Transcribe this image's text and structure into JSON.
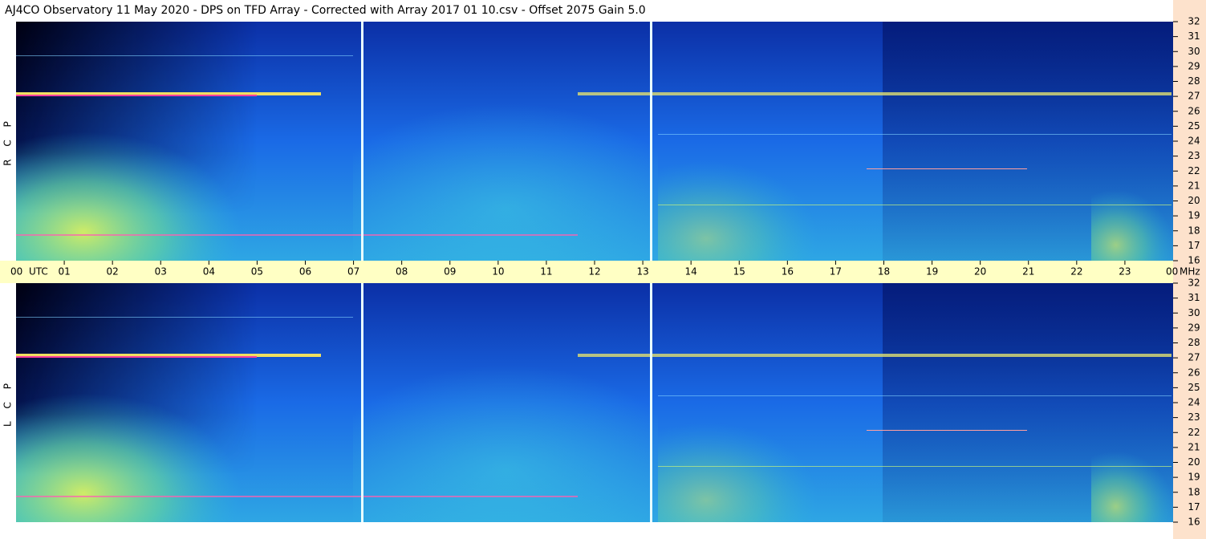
{
  "title": "AJ4CO Observatory  11 May 2020  -  DPS on TFD Array  -  Corrected with Array 2017 01 10.csv  -  Offset 2075  Gain 5.0",
  "time_axis": {
    "start_label": "00",
    "start_unit": "UTC",
    "ticks": [
      "01",
      "02",
      "03",
      "04",
      "05",
      "06",
      "07",
      "08",
      "09",
      "10",
      "11",
      "12",
      "13",
      "14",
      "15",
      "16",
      "17",
      "18",
      "19",
      "20",
      "21",
      "22",
      "23"
    ],
    "end_label": "00",
    "end_unit": "MHz"
  },
  "panels": [
    {
      "label": "R C P",
      "freq_ticks": [
        32,
        31,
        30,
        29,
        28,
        27,
        26,
        25,
        24,
        23,
        22,
        21,
        20,
        19,
        18,
        17,
        16
      ]
    },
    {
      "label": "L C P",
      "freq_ticks": [
        32,
        31,
        30,
        29,
        28,
        27,
        26,
        25,
        24,
        23,
        22,
        21,
        20,
        19,
        18,
        17,
        16
      ]
    }
  ]
}
